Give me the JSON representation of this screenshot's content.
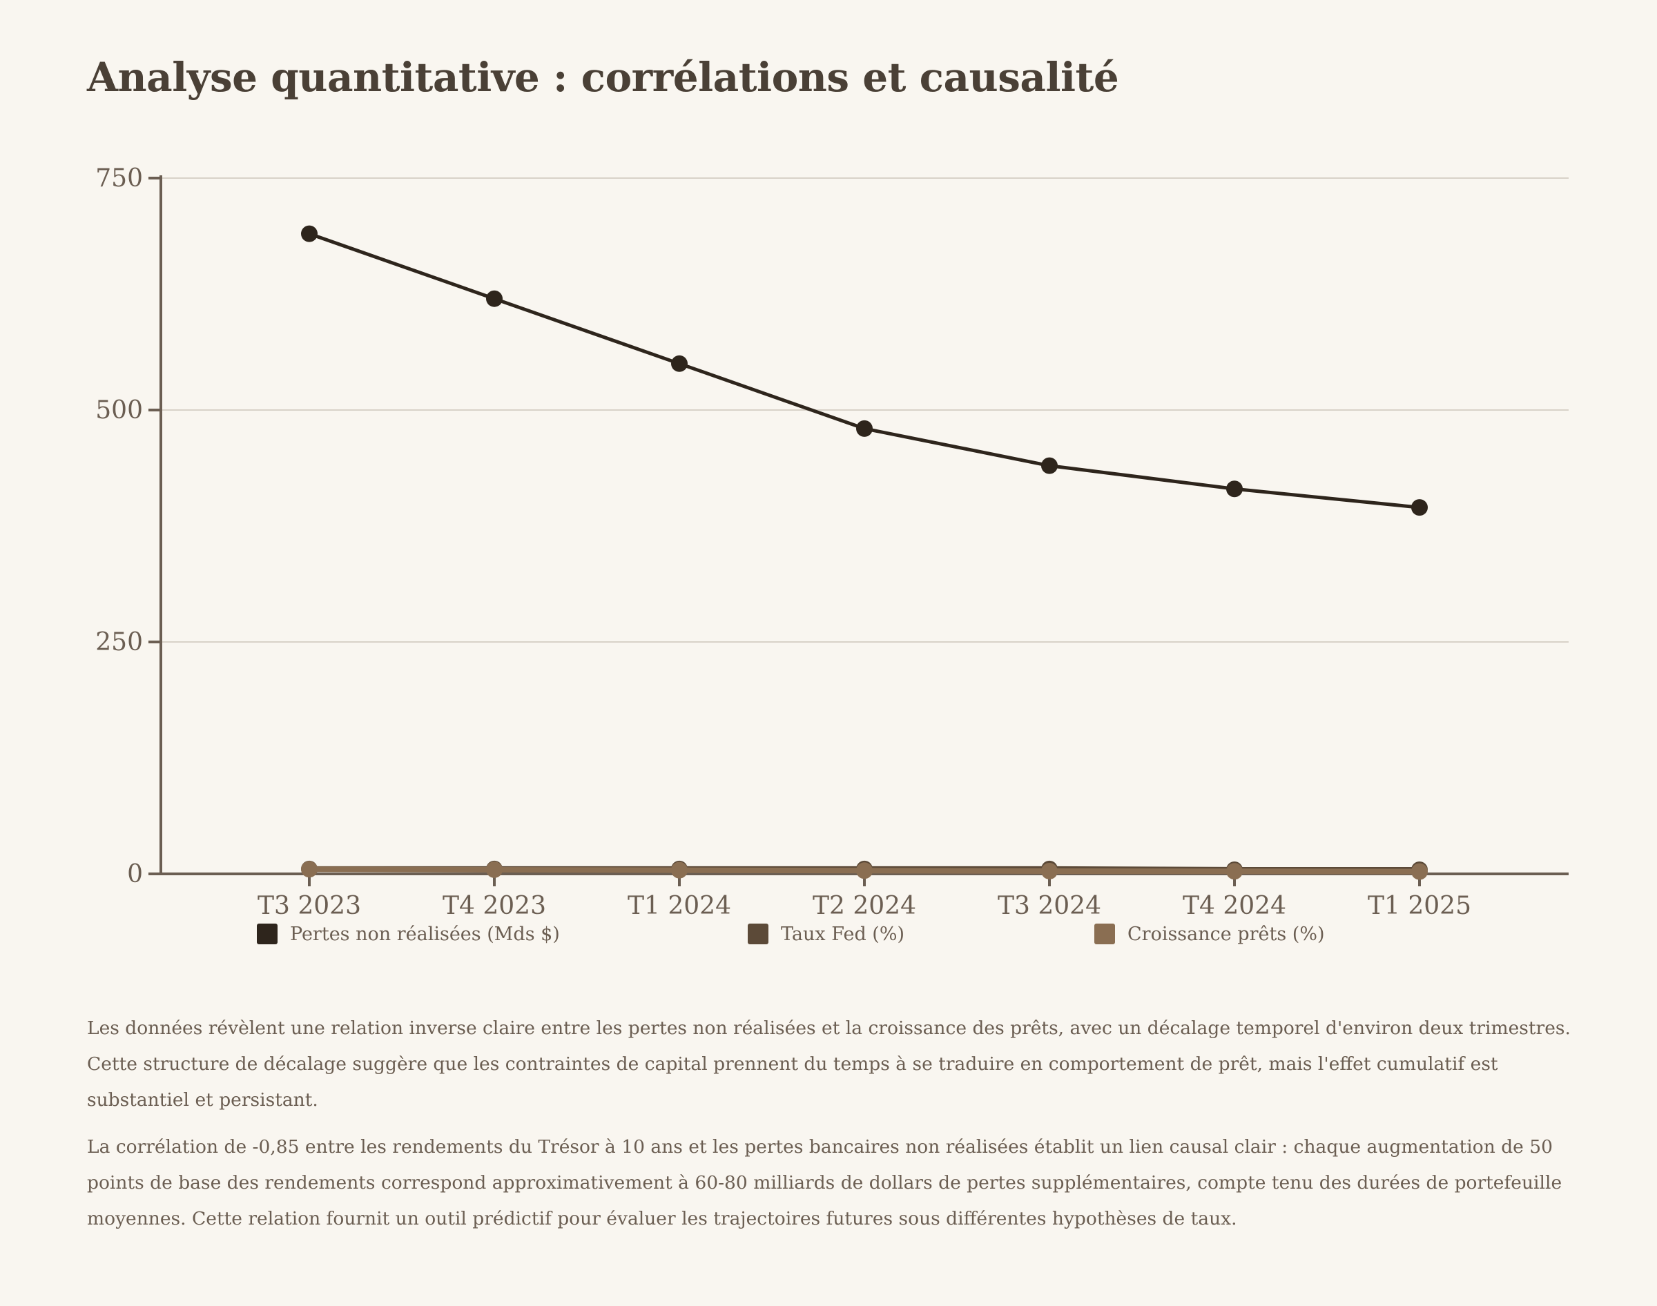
{
  "page": {
    "title": "Analyse quantitative : corrélations et causalité"
  },
  "chart_data": {
    "type": "line",
    "title": "",
    "xlabel": "",
    "ylabel": "",
    "categories": [
      "T3 2023",
      "T4 2023",
      "T1 2024",
      "T2 2024",
      "T3 2024",
      "T4 2024",
      "T1 2025"
    ],
    "ylim": [
      0,
      750
    ],
    "yticks": [
      0,
      250,
      500,
      750
    ],
    "grid": true,
    "legend_position": "bottom",
    "series": [
      {
        "name": "Pertes non réalisées (Mds $)",
        "color": "#2e251c",
        "values": [
          690,
          620,
          550,
          480,
          440,
          415,
          395
        ]
      },
      {
        "name": "Taux Fed (%)",
        "color": "#5c4a38",
        "values": [
          5.33,
          5.33,
          5.33,
          5.33,
          5.33,
          4.5,
          4.5
        ]
      },
      {
        "name": "Croissance prêts (%)",
        "color": "#8a6e52",
        "values": [
          5.0,
          4.5,
          4.0,
          3.5,
          3.0,
          2.8,
          2.5
        ]
      }
    ]
  },
  "analysis": {
    "paragraph_1": "Les données révèlent une relation inverse claire entre les pertes non réalisées et la croissance des prêts, avec un décalage temporel d'environ deux trimestres. Cette structure de décalage suggère que les contraintes de capital prennent du temps à se traduire en comportement de prêt, mais l'effet cumulatif est substantiel et persistant.",
    "paragraph_2": "La corrélation de -0,85 entre les rendements du Trésor à 10 ans et les pertes bancaires non réalisées établit un lien causal clair : chaque augmentation de 50 points de base des rendements correspond approximativement à 60-80 milliards de dollars de pertes supplémentaires, compte tenu des durées de portefeuille moyennes. Cette relation fournit un outil prédictif pour évaluer les trajectoires futures sous différentes hypothèses de taux."
  }
}
